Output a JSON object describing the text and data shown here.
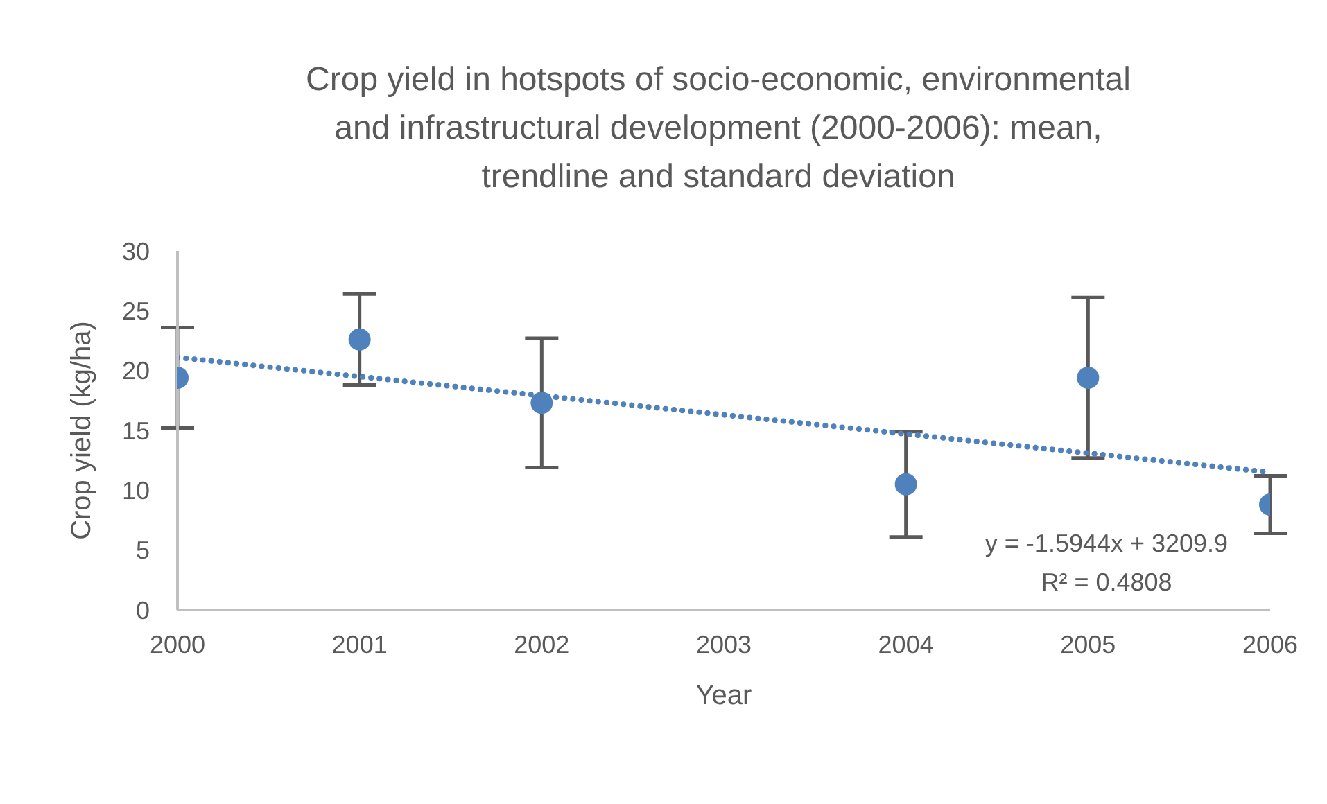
{
  "chart_data": {
    "type": "scatter",
    "title": "Crop yield in hotspots of socio-economic, environmental and infrastructural development (2000-2006): mean, trendline and standard deviation",
    "xlabel": "Year",
    "ylabel": "Crop yield (kg/ha)",
    "xlim": [
      2000,
      2006
    ],
    "xticks": [
      2000,
      2001,
      2002,
      2003,
      2004,
      2005,
      2006
    ],
    "ylim": [
      0,
      30
    ],
    "yticks": [
      0,
      5,
      10,
      15,
      20,
      25,
      30
    ],
    "grid": false,
    "marker": "circle",
    "series": [
      {
        "type": "scatter",
        "color": "#4f81bd",
        "x": [
          2000,
          2001,
          2002,
          2004,
          2005,
          2006
        ],
        "values": [
          19.4,
          22.6,
          17.3,
          10.5,
          19.4,
          8.8
        ],
        "errors": [
          4.2,
          3.8,
          5.4,
          4.4,
          6.7,
          2.4
        ]
      },
      {
        "type": "line",
        "color": "#4f81bd",
        "line_style": "dotted",
        "marker": "none",
        "x": [
          2000,
          2006
        ],
        "values": [
          21.1,
          11.5
        ]
      }
    ],
    "annotations": [
      "y = -1.5944x + 3209.9",
      "R² = 0.4808"
    ]
  }
}
